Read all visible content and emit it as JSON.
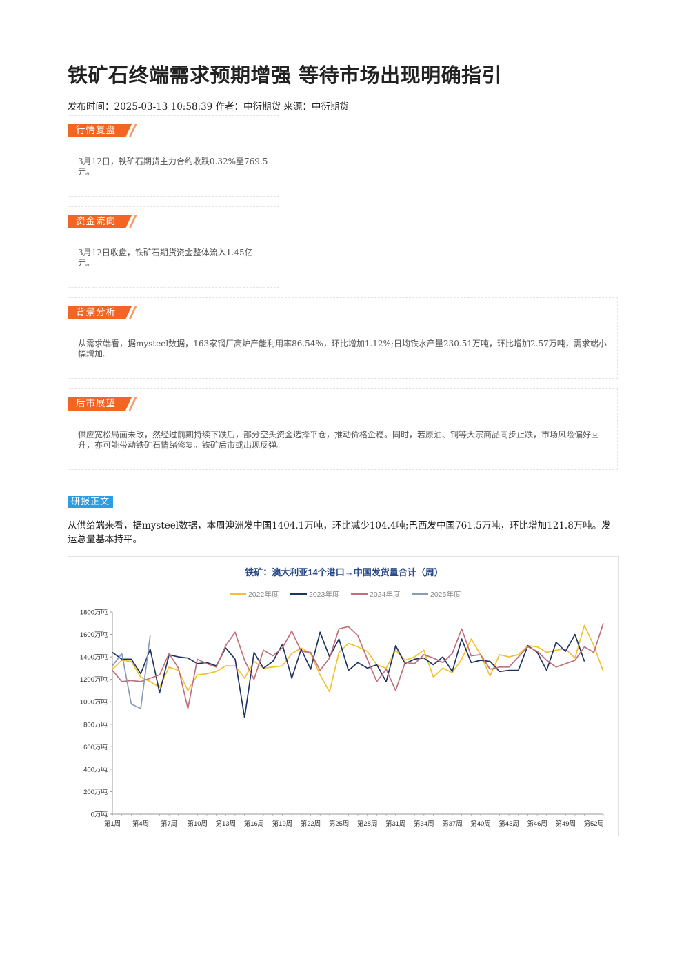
{
  "article": {
    "title": "铁矿石终端需求预期增强 等待市场出现明确指引",
    "meta": "发布时间：2025-03-13 10:58:39 作者：中衍期货 来源：中衍期货"
  },
  "sections": [
    {
      "tag": "行情复盘",
      "text": "3月12日，铁矿石期货主力合约收跌0.32%至769.5元。"
    },
    {
      "tag": "资金流向",
      "text": "3月12日收盘，铁矿石期货资金整体流入1.45亿元。"
    },
    {
      "tag": "背景分析",
      "text": "从需求端看，据mysteel数据，163家钢厂高炉产能利用率86.54%，环比增加1.12%;日均铁水产量230.51万吨，环比增加2.57万吨，需求端小幅增加。"
    },
    {
      "tag": "后市展望",
      "text": "供应宽松局面未改，然经过前期持续下跌后，部分空头资金选择平仓，推动价格企稳。同时，若原油、铜等大宗商品同步止跌，市场风险偏好回升，亦可能带动铁矿石情绪修复。铁矿后市或出现反弹。"
    }
  ],
  "report": {
    "heading": "研报正文",
    "paragraph": "从供给端来看，据mysteel数据，本周澳洲发中国1404.1万吨，环比减少104.4吨;巴西发中国761.5万吨，环比增加121.8万吨。发运总量基本持平。"
  },
  "chart_data": {
    "type": "line",
    "title": "铁矿：澳大利亚14个港口→中国发货量合计（周）",
    "ylim": [
      0,
      1800
    ],
    "yticks": [
      "0万吨",
      "200万吨",
      "400万吨",
      "600万吨",
      "800万吨",
      "1000万吨",
      "1200万吨",
      "1400万吨",
      "1600万吨",
      "1800万吨"
    ],
    "ytick_values": [
      0,
      200,
      400,
      600,
      800,
      1000,
      1200,
      1400,
      1600,
      1800
    ],
    "xticks": [
      "第1周",
      "第4周",
      "第7周",
      "第10周",
      "第13周",
      "第16周",
      "第19周",
      "第22周",
      "第25周",
      "第28周",
      "第31周",
      "第34周",
      "第37周",
      "第40周",
      "第43周",
      "第46周",
      "第49周",
      "第52周"
    ],
    "xtick_weeks": [
      1,
      4,
      7,
      10,
      13,
      16,
      19,
      22,
      25,
      28,
      31,
      34,
      37,
      40,
      43,
      46,
      49,
      52
    ],
    "xlim": [
      1,
      53
    ],
    "series": [
      {
        "name": "2022年度",
        "color": "#f2c12e",
        "values": [
          1290,
          1370,
          1360,
          1220,
          1180,
          1130,
          1310,
          1280,
          1100,
          1240,
          1250,
          1270,
          1320,
          1320,
          1210,
          1360,
          1300,
          1310,
          1320,
          1430,
          1480,
          1430,
          1240,
          1090,
          1440,
          1520,
          1490,
          1450,
          1330,
          1300,
          1460,
          1370,
          1400,
          1460,
          1220,
          1300,
          1260,
          1380,
          1560,
          1420,
          1230,
          1420,
          1400,
          1420,
          1500,
          1490,
          1440,
          1460,
          1470,
          1390,
          1680,
          1500,
          1270
        ]
      },
      {
        "name": "2023年度",
        "color": "#1f3461",
        "values": [
          1440,
          1380,
          1380,
          1250,
          1470,
          1080,
          1420,
          1400,
          1390,
          1340,
          1350,
          1320,
          1480,
          1380,
          860,
          1440,
          1300,
          1360,
          1510,
          1210,
          1470,
          1290,
          1620,
          1400,
          1560,
          1280,
          1350,
          1300,
          1330,
          1180,
          1500,
          1340,
          1380,
          1390,
          1330,
          1400,
          1270,
          1560,
          1350,
          1370,
          1360,
          1270,
          1280,
          1280,
          1500,
          1440,
          1280,
          1530,
          1450,
          1600,
          1360
        ]
      },
      {
        "name": "2024年度",
        "color": "#c0707a",
        "values": [
          1280,
          1180,
          1190,
          1180,
          1210,
          1240,
          1430,
          1300,
          940,
          1380,
          1340,
          1310,
          1500,
          1620,
          1370,
          1200,
          1460,
          1410,
          1480,
          1630,
          1450,
          1440,
          1280,
          1390,
          1650,
          1670,
          1590,
          1380,
          1180,
          1290,
          1100,
          1350,
          1340,
          1420,
          1390,
          1350,
          1430,
          1650,
          1410,
          1420,
          1290,
          1310,
          1310,
          1400,
          1490,
          1450,
          1370,
          1310,
          1340,
          1370,
          1490,
          1440,
          1700
        ]
      },
      {
        "name": "2025年度",
        "color": "#8a9bb4",
        "values": [
          1320,
          1430,
          980,
          940,
          1590
        ]
      }
    ]
  }
}
